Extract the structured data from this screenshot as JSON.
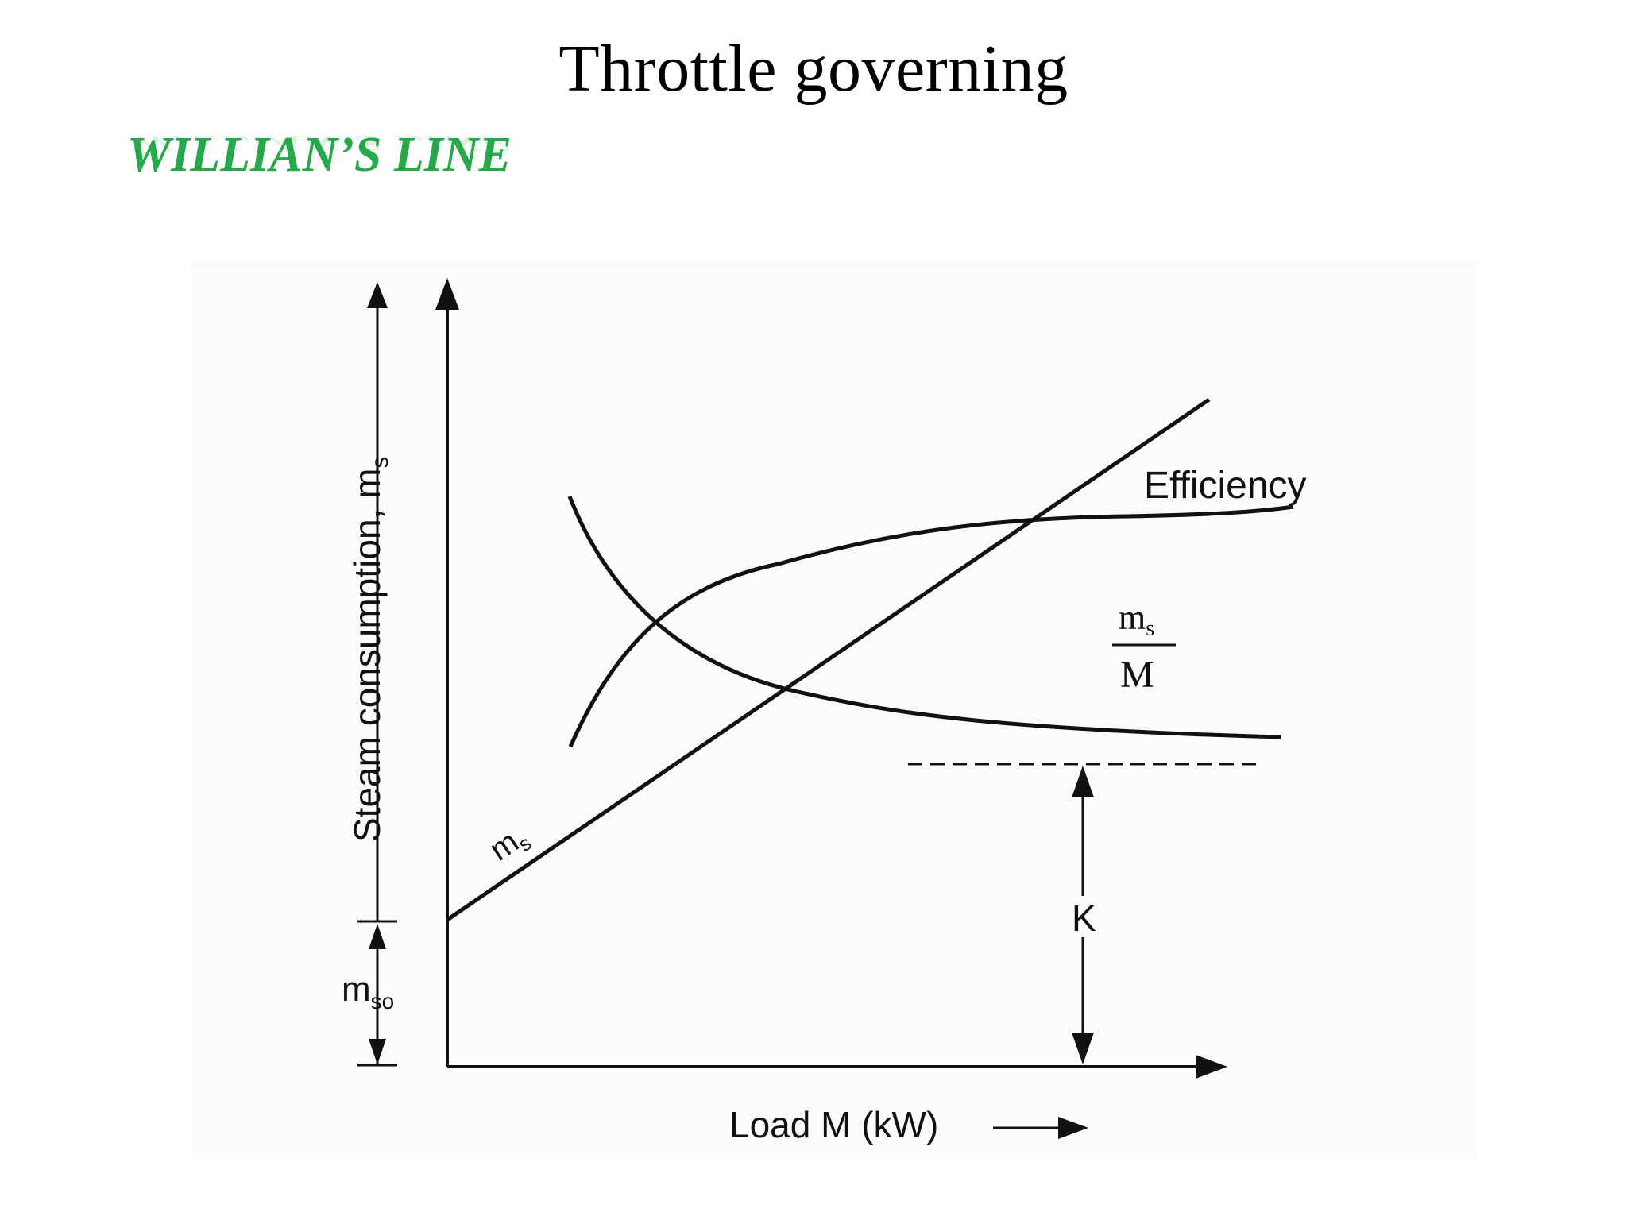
{
  "title": "Throttle governing",
  "subtitle": "WILLIAN’S LINE",
  "colors": {
    "subtitle": "#27a84a",
    "ink": "#111111"
  },
  "diagram": {
    "y_axis_label": "Steam consumption, m",
    "y_axis_label_sub": "s",
    "m_so_label": "m",
    "m_so_sub": "so",
    "x_axis_label": "Load M (kW)",
    "ms_line_label": "m",
    "ms_line_sub": "s",
    "efficiency_label": "Efficiency",
    "ratio_numerator": "m",
    "ratio_numerator_sub": "s",
    "ratio_denominator": "M",
    "k_label": "K"
  }
}
